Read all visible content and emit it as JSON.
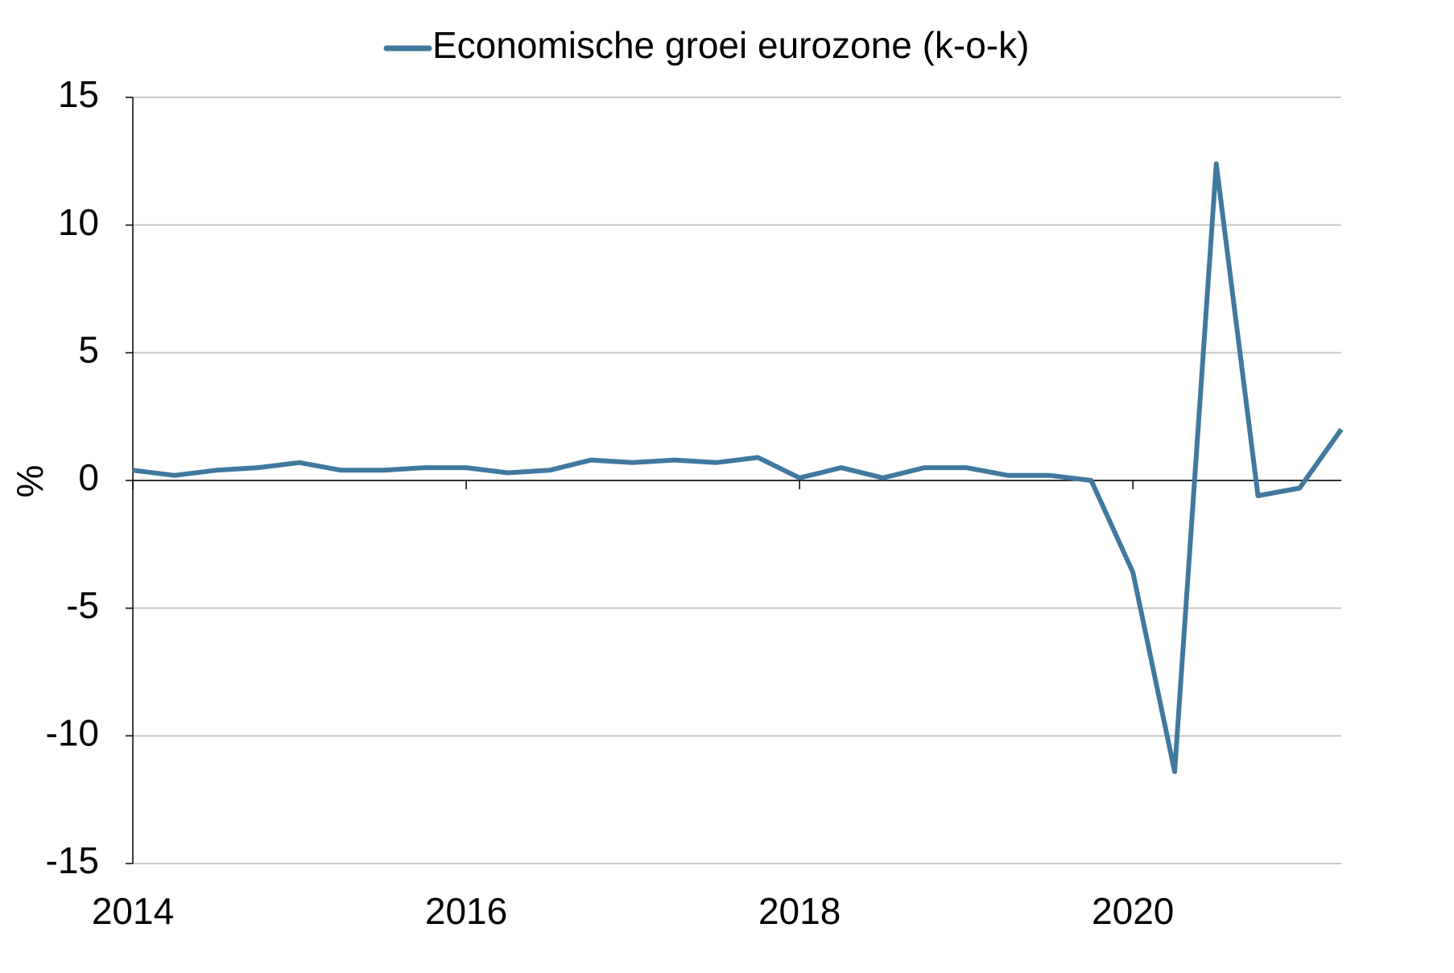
{
  "chart_data": {
    "type": "line",
    "legend_label_position": "top",
    "y_label": "%",
    "x": [
      2014,
      2014.25,
      2014.5,
      2014.75,
      2015,
      2015.25,
      2015.5,
      2015.75,
      2016,
      2016.25,
      2016.5,
      2016.75,
      2017,
      2017.25,
      2017.5,
      2017.75,
      2018,
      2018.25,
      2018.5,
      2018.75,
      2019,
      2019.25,
      2019.5,
      2019.75,
      2020,
      2020.25,
      2020.5,
      2020.75,
      2021,
      2021.25
    ],
    "series": [
      {
        "name": "Economische groei eurozone (k-o-k)",
        "color": "#41799e",
        "values": [
          0.4,
          0.2,
          0.4,
          0.5,
          0.7,
          0.4,
          0.4,
          0.5,
          0.5,
          0.3,
          0.4,
          0.8,
          0.7,
          0.8,
          0.7,
          0.9,
          0.1,
          0.5,
          0.1,
          0.5,
          0.5,
          0.2,
          0.2,
          0.0,
          -3.6,
          -11.4,
          12.4,
          -0.6,
          -0.3,
          2.0
        ]
      }
    ],
    "xlim": [
      2014,
      2021.25
    ],
    "xticks": [
      2014,
      2016,
      2018,
      2020
    ],
    "ylim": [
      -15,
      15
    ],
    "yticks": [
      -15,
      -10,
      -5,
      0,
      5,
      10,
      15
    ],
    "grid": true
  }
}
